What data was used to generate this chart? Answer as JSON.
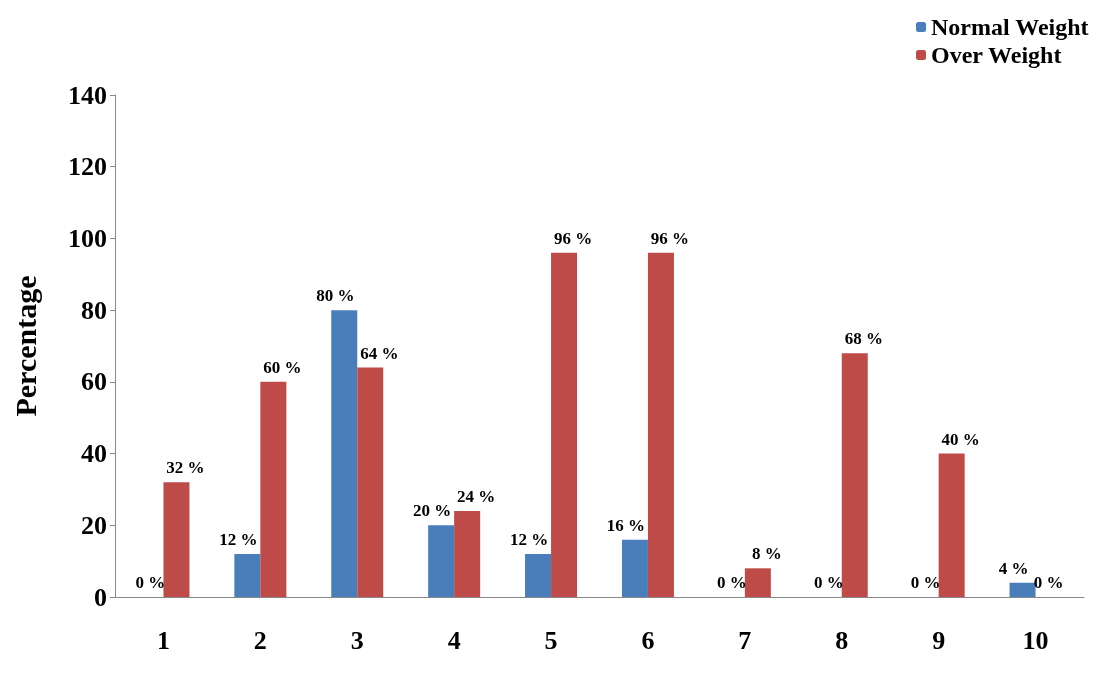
{
  "chart_data": {
    "type": "bar",
    "ylabel": "Percentage",
    "categories": [
      "1",
      "2",
      "3",
      "4",
      "5",
      "6",
      "7",
      "8",
      "9",
      "10"
    ],
    "series": [
      {
        "name": "Normal Weight",
        "color": "#4a7ebb",
        "values": [
          0,
          12,
          80,
          20,
          12,
          16,
          0,
          0,
          0,
          4
        ],
        "value_labels": [
          "0 %",
          "12 %",
          "80 %",
          "20 %",
          "12 %",
          "16 %",
          "0 %",
          "0 %",
          "0 %",
          "4 %"
        ]
      },
      {
        "name": "Over Weight",
        "color": "#be4b48",
        "values": [
          32,
          60,
          64,
          24,
          96,
          96,
          8,
          68,
          40,
          0
        ],
        "value_labels": [
          "32 %",
          "60 %",
          "64 %",
          "24 %",
          "96 %",
          "96 %",
          "8 %",
          "68 %",
          "40 %",
          "0 %"
        ]
      }
    ],
    "ylim": [
      0,
      140
    ],
    "yticks": [
      0,
      20,
      40,
      60,
      80,
      100,
      120,
      140
    ],
    "grid": false,
    "legend": "top right"
  }
}
